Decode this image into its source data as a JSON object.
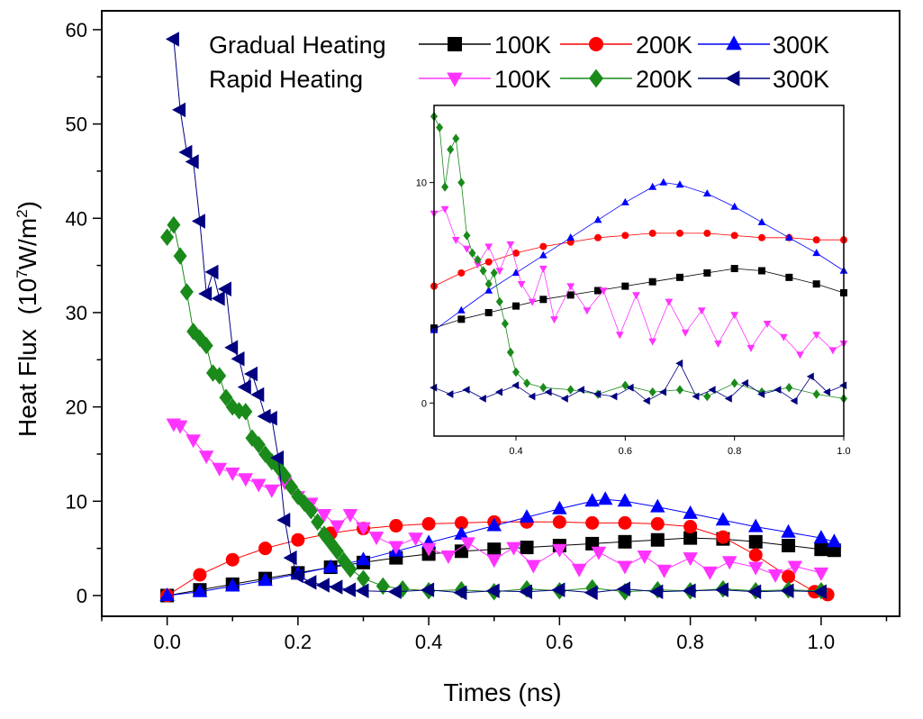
{
  "chart_data": [
    {
      "type": "line",
      "title": "",
      "xlabel": "Times (ns)",
      "ylabel": "Heat Flux",
      "ylabel_unit_prefix": "(10",
      "ylabel_unit_exp": "7",
      "ylabel_unit_mid": "W/m",
      "ylabel_unit_exp2": "2",
      "ylabel_unit_suffix": ")",
      "xlim": [
        -0.1,
        1.12
      ],
      "ylim": [
        -2.2,
        62
      ],
      "xticks": [
        "0.0",
        "0.2",
        "0.4",
        "0.6",
        "0.8",
        "1.0"
      ],
      "xtick_values": [
        0.0,
        0.2,
        0.4,
        0.6,
        0.8,
        1.0
      ],
      "yticks": [
        "0",
        "10",
        "20",
        "30",
        "40",
        "50",
        "60"
      ],
      "ytick_values": [
        0,
        10,
        20,
        30,
        40,
        50,
        60
      ],
      "grid": false,
      "legend": {
        "position": "top",
        "group_labels": [
          "Gradual Heating",
          "Rapid Heating"
        ],
        "entries": [
          "100K",
          "200K",
          "300K",
          "100K",
          "200K",
          "300K"
        ]
      },
      "series": [
        {
          "name": "Gradual Heating 100K",
          "color": "#000000",
          "marker": "square",
          "x": [
            0.0,
            0.05,
            0.1,
            0.15,
            0.2,
            0.25,
            0.3,
            0.35,
            0.4,
            0.45,
            0.5,
            0.55,
            0.6,
            0.65,
            0.7,
            0.75,
            0.8,
            0.85,
            0.9,
            0.95,
            1.0,
            1.02
          ],
          "y": [
            0.0,
            0.6,
            1.2,
            1.8,
            2.4,
            3.0,
            3.5,
            4.0,
            4.4,
            4.7,
            4.9,
            5.1,
            5.3,
            5.5,
            5.7,
            5.9,
            6.1,
            6.0,
            5.7,
            5.3,
            4.9,
            4.8
          ]
        },
        {
          "name": "Gradual Heating 200K",
          "color": "#ff0000",
          "marker": "circle",
          "x": [
            0.0,
            0.05,
            0.1,
            0.15,
            0.2,
            0.25,
            0.3,
            0.35,
            0.4,
            0.45,
            0.5,
            0.55,
            0.6,
            0.65,
            0.7,
            0.75,
            0.8,
            0.85,
            0.9,
            0.95,
            0.99,
            1.01
          ],
          "y": [
            0.0,
            2.2,
            3.8,
            5.0,
            5.9,
            6.6,
            7.1,
            7.4,
            7.6,
            7.7,
            7.8,
            7.8,
            7.8,
            7.7,
            7.7,
            7.6,
            7.3,
            6.2,
            4.3,
            2.0,
            0.4,
            0.1
          ]
        },
        {
          "name": "Gradual Heating 300K",
          "color": "#0000ff",
          "marker": "triangle-up",
          "x": [
            0.0,
            0.05,
            0.1,
            0.15,
            0.2,
            0.25,
            0.3,
            0.35,
            0.4,
            0.45,
            0.5,
            0.55,
            0.6,
            0.65,
            0.67,
            0.7,
            0.75,
            0.8,
            0.85,
            0.9,
            0.95,
            1.0,
            1.02
          ],
          "y": [
            0.0,
            0.4,
            1.0,
            1.6,
            2.3,
            3.0,
            3.8,
            4.7,
            5.6,
            6.5,
            7.4,
            8.3,
            9.2,
            10.0,
            10.2,
            10.0,
            9.4,
            8.7,
            8.0,
            7.3,
            6.7,
            6.1,
            5.7
          ]
        },
        {
          "name": "Rapid Heating 100K",
          "color": "#ff33ff",
          "marker": "triangle-down",
          "x": [
            0.01,
            0.02,
            0.04,
            0.06,
            0.08,
            0.1,
            0.12,
            0.14,
            0.16,
            0.18,
            0.2,
            0.22,
            0.24,
            0.26,
            0.28,
            0.3,
            0.32,
            0.35,
            0.38,
            0.4,
            0.43,
            0.46,
            0.5,
            0.53,
            0.56,
            0.6,
            0.63,
            0.66,
            0.7,
            0.73,
            0.76,
            0.8,
            0.83,
            0.86,
            0.9,
            0.93,
            0.96,
            1.0
          ],
          "y": [
            18.2,
            18.0,
            16.5,
            14.8,
            13.5,
            13.0,
            12.4,
            11.8,
            11.2,
            12.0,
            10.5,
            9.8,
            8.6,
            7.4,
            8.6,
            7.2,
            6.2,
            5.2,
            6.1,
            5.0,
            4.2,
            5.6,
            3.8,
            5.1,
            3.2,
            4.9,
            2.8,
            4.6,
            3.1,
            4.2,
            2.7,
            4.0,
            2.5,
            3.6,
            3.0,
            2.2,
            3.1,
            2.4
          ]
        },
        {
          "name": "Rapid Heating 200K",
          "color": "#1a8a1a",
          "marker": "diamond",
          "x": [
            0.0,
            0.01,
            0.02,
            0.03,
            0.04,
            0.05,
            0.06,
            0.07,
            0.08,
            0.09,
            0.1,
            0.11,
            0.12,
            0.13,
            0.14,
            0.15,
            0.16,
            0.17,
            0.18,
            0.19,
            0.2,
            0.21,
            0.22,
            0.23,
            0.24,
            0.25,
            0.26,
            0.27,
            0.28,
            0.3,
            0.33,
            0.36,
            0.4,
            0.45,
            0.5,
            0.55,
            0.6,
            0.65,
            0.7,
            0.75,
            0.8,
            0.85,
            0.9,
            0.95,
            1.0
          ],
          "y": [
            38.0,
            39.3,
            36.0,
            32.2,
            28.0,
            27.3,
            26.5,
            23.6,
            23.3,
            21.0,
            20.0,
            19.6,
            19.5,
            16.7,
            16.0,
            15.0,
            14.2,
            13.6,
            12.7,
            11.5,
            10.5,
            9.8,
            9.0,
            7.8,
            6.5,
            5.6,
            4.7,
            3.7,
            2.8,
            1.8,
            1.0,
            0.7,
            0.5,
            0.6,
            0.4,
            0.7,
            0.5,
            0.8,
            0.4,
            0.6,
            0.5,
            0.7,
            0.5,
            0.6,
            0.5
          ]
        },
        {
          "name": "Rapid Heating 300K",
          "color": "#000080",
          "marker": "triangle-left",
          "x": [
            0.01,
            0.02,
            0.03,
            0.04,
            0.05,
            0.06,
            0.07,
            0.08,
            0.09,
            0.1,
            0.11,
            0.12,
            0.13,
            0.14,
            0.15,
            0.16,
            0.17,
            0.18,
            0.19,
            0.2,
            0.22,
            0.24,
            0.26,
            0.28,
            0.3,
            0.35,
            0.4,
            0.45,
            0.5,
            0.55,
            0.6,
            0.65,
            0.7,
            0.75,
            0.8,
            0.85,
            0.9,
            0.95,
            1.0
          ],
          "y": [
            59.0,
            51.5,
            47.0,
            46.0,
            39.7,
            32.0,
            34.3,
            31.5,
            32.5,
            26.3,
            25.1,
            22.1,
            23.5,
            21.3,
            19.0,
            18.8,
            14.6,
            8.0,
            4.0,
            2.1,
            1.4,
            1.1,
            0.9,
            0.6,
            0.5,
            0.4,
            0.6,
            0.3,
            0.5,
            0.4,
            0.6,
            0.3,
            0.7,
            0.4,
            0.5,
            0.6,
            0.4,
            0.5,
            0.4
          ]
        }
      ]
    },
    {
      "type": "line",
      "title": "",
      "xlabel": "",
      "ylabel": "",
      "xlim": [
        0.25,
        1.0
      ],
      "ylim": [
        -1.5,
        13.5
      ],
      "xticks": [
        "0.4",
        "0.6",
        "0.8",
        "1.0"
      ],
      "xtick_values": [
        0.4,
        0.6,
        0.8,
        1.0
      ],
      "yticks": [
        "0",
        "10"
      ],
      "ytick_values": [
        0,
        10
      ],
      "grid": false,
      "series": [
        {
          "name": "Gradual Heating 100K",
          "color": "#000000",
          "marker": "square",
          "x": [
            0.25,
            0.3,
            0.35,
            0.4,
            0.45,
            0.5,
            0.55,
            0.6,
            0.65,
            0.7,
            0.75,
            0.8,
            0.85,
            0.9,
            0.95,
            1.0
          ],
          "y": [
            3.4,
            3.8,
            4.1,
            4.4,
            4.7,
            4.9,
            5.1,
            5.3,
            5.5,
            5.7,
            5.9,
            6.1,
            6.0,
            5.7,
            5.4,
            5.0
          ]
        },
        {
          "name": "Gradual Heating 200K",
          "color": "#ff0000",
          "marker": "circle",
          "x": [
            0.25,
            0.3,
            0.35,
            0.4,
            0.45,
            0.5,
            0.55,
            0.6,
            0.65,
            0.7,
            0.75,
            0.8,
            0.85,
            0.9,
            0.95,
            1.0
          ],
          "y": [
            5.3,
            5.9,
            6.4,
            6.8,
            7.1,
            7.3,
            7.5,
            7.6,
            7.7,
            7.7,
            7.7,
            7.6,
            7.5,
            7.5,
            7.4,
            7.4
          ]
        },
        {
          "name": "Gradual Heating 300K",
          "color": "#0000ff",
          "marker": "triangle-up",
          "x": [
            0.25,
            0.3,
            0.35,
            0.4,
            0.45,
            0.5,
            0.55,
            0.6,
            0.65,
            0.67,
            0.7,
            0.75,
            0.8,
            0.85,
            0.9,
            0.95,
            1.0
          ],
          "y": [
            3.3,
            4.2,
            5.1,
            5.9,
            6.7,
            7.5,
            8.3,
            9.1,
            9.8,
            10.0,
            9.9,
            9.5,
            8.9,
            8.2,
            7.5,
            6.8,
            6.0
          ]
        },
        {
          "name": "Rapid Heating 100K",
          "color": "#ff33ff",
          "marker": "triangle-down",
          "x": [
            0.25,
            0.27,
            0.29,
            0.31,
            0.33,
            0.35,
            0.37,
            0.39,
            0.41,
            0.43,
            0.45,
            0.47,
            0.5,
            0.53,
            0.56,
            0.59,
            0.62,
            0.65,
            0.68,
            0.71,
            0.74,
            0.77,
            0.8,
            0.83,
            0.86,
            0.89,
            0.92,
            0.95,
            0.98,
            1.0
          ],
          "y": [
            8.6,
            8.8,
            7.4,
            7.0,
            6.3,
            7.1,
            6.0,
            7.2,
            5.4,
            4.6,
            6.1,
            3.8,
            5.3,
            4.2,
            5.1,
            3.1,
            4.9,
            2.8,
            4.6,
            3.2,
            4.2,
            2.7,
            4.0,
            2.5,
            3.6,
            3.0,
            2.2,
            3.1,
            2.4,
            2.7
          ]
        },
        {
          "name": "Rapid Heating 200K",
          "color": "#1a8a1a",
          "marker": "diamond",
          "x": [
            0.25,
            0.26,
            0.27,
            0.28,
            0.29,
            0.3,
            0.31,
            0.32,
            0.33,
            0.34,
            0.35,
            0.36,
            0.37,
            0.38,
            0.39,
            0.4,
            0.42,
            0.45,
            0.5,
            0.55,
            0.6,
            0.65,
            0.7,
            0.75,
            0.8,
            0.85,
            0.9,
            0.95,
            1.0
          ],
          "y": [
            13.0,
            12.5,
            9.8,
            11.5,
            12.0,
            10.0,
            7.6,
            6.8,
            6.5,
            6.0,
            5.4,
            5.9,
            4.6,
            3.6,
            2.3,
            1.4,
            0.9,
            0.7,
            0.6,
            0.4,
            0.8,
            0.5,
            0.6,
            0.3,
            0.9,
            0.5,
            0.7,
            0.4,
            0.2
          ]
        },
        {
          "name": "Rapid Heating 300K",
          "color": "#000080",
          "marker": "triangle-left",
          "x": [
            0.25,
            0.28,
            0.31,
            0.34,
            0.37,
            0.4,
            0.43,
            0.46,
            0.49,
            0.52,
            0.55,
            0.58,
            0.61,
            0.64,
            0.67,
            0.7,
            0.73,
            0.76,
            0.79,
            0.82,
            0.85,
            0.88,
            0.91,
            0.94,
            0.97,
            1.0
          ],
          "y": [
            0.7,
            0.4,
            0.6,
            0.2,
            0.5,
            0.8,
            0.3,
            0.5,
            0.2,
            0.6,
            0.4,
            0.3,
            0.7,
            0.1,
            0.5,
            1.8,
            0.3,
            0.6,
            0.2,
            0.9,
            0.4,
            0.6,
            0.1,
            1.2,
            0.5,
            0.8
          ]
        }
      ]
    }
  ]
}
